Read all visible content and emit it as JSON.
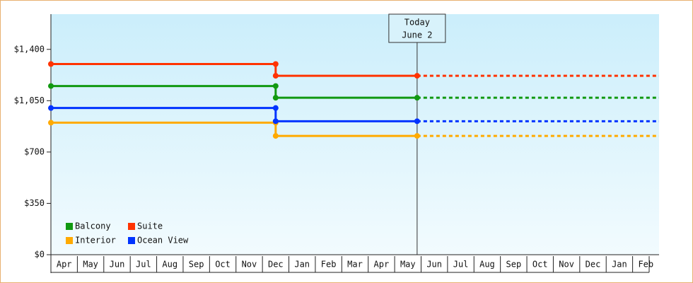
{
  "chart_data": {
    "type": "step-line",
    "categories": [
      "Apr",
      "May",
      "Jun",
      "Jul",
      "Aug",
      "Sep",
      "Oct",
      "Nov",
      "Dec",
      "Jan",
      "Feb",
      "Mar",
      "Apr",
      "May",
      "Jun",
      "Jul",
      "Aug",
      "Sep",
      "Oct",
      "Nov",
      "Dec",
      "Jan",
      "Feb"
    ],
    "x": [
      0,
      8.5,
      8.5,
      13.85
    ],
    "xlim": [
      0,
      23
    ],
    "ylim": [
      0,
      1640
    ],
    "yticks": [
      {
        "value": 0,
        "label": "$0"
      },
      {
        "value": 350,
        "label": "$350"
      },
      {
        "value": 700,
        "label": "$700"
      },
      {
        "value": 1050,
        "label": "$1,050"
      },
      {
        "value": 1400,
        "label": "$1,400"
      }
    ],
    "series": [
      {
        "name": "Balcony",
        "color": "#119911",
        "values": [
          1150,
          1150,
          1070,
          1070
        ]
      },
      {
        "name": "Suite",
        "color": "#ff3300",
        "values": [
          1300,
          1300,
          1220,
          1220
        ]
      },
      {
        "name": "Interior",
        "color": "#ffaa00",
        "values": [
          900,
          900,
          810,
          810
        ]
      },
      {
        "name": "Ocean View",
        "color": "#0033ff",
        "values": [
          1000,
          1000,
          910,
          910
        ]
      }
    ],
    "today": {
      "x": 13.85,
      "label": [
        "Today",
        "June 2"
      ]
    },
    "legend": "lower-left"
  }
}
